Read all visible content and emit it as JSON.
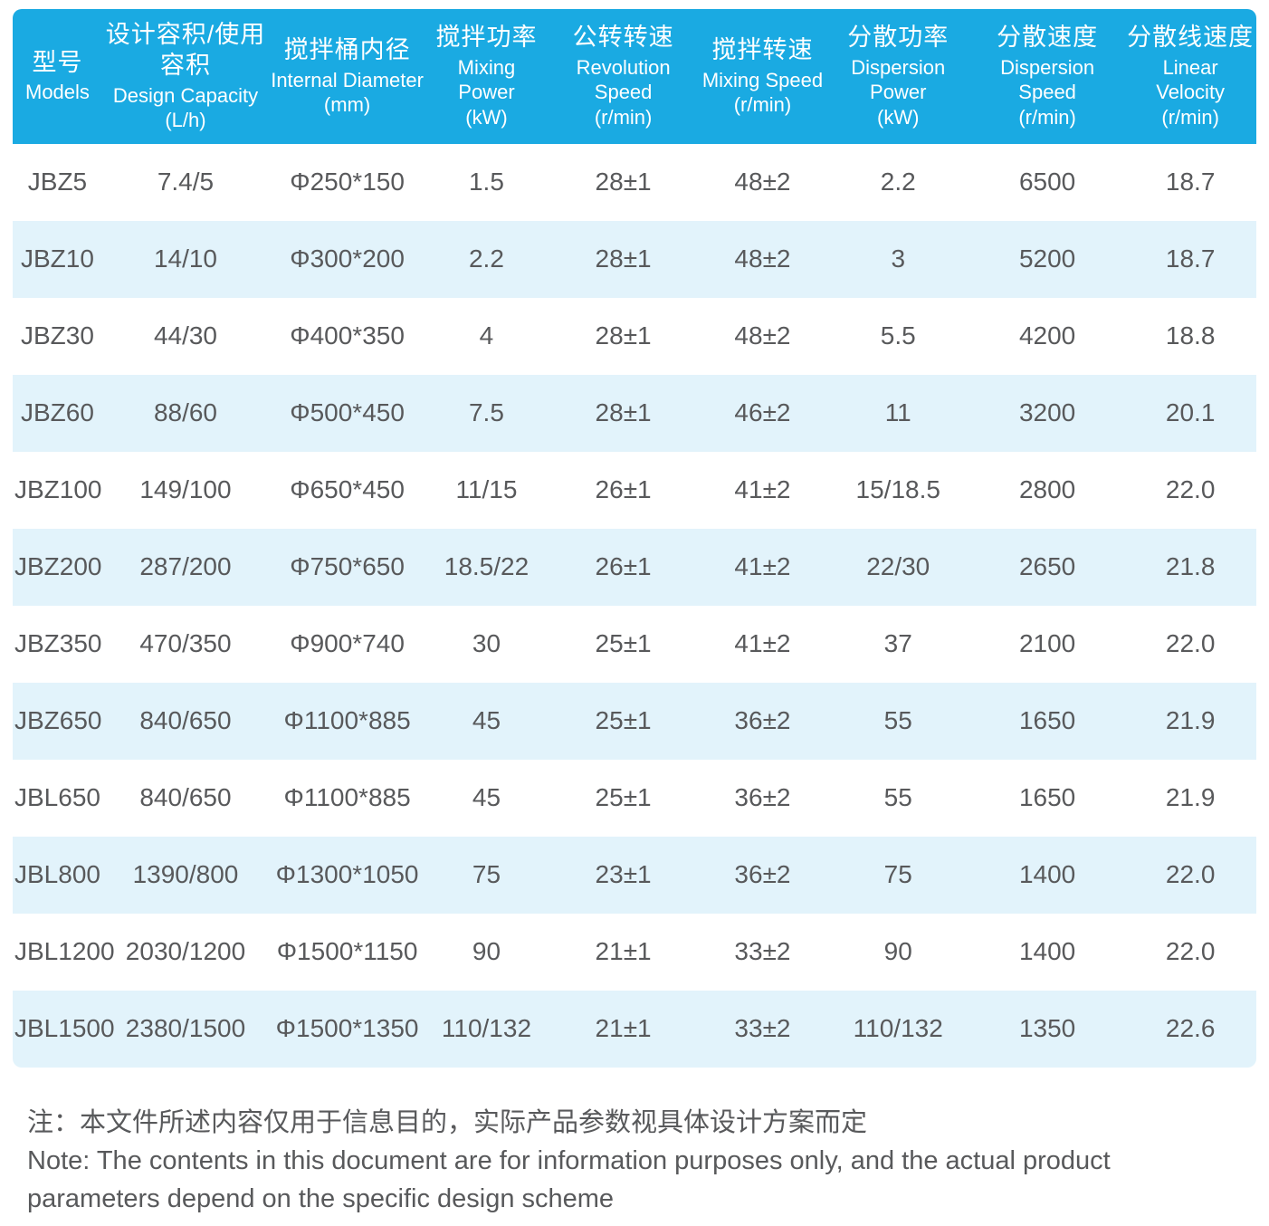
{
  "colors": {
    "header_bg": "#1aaae2",
    "header_text": "#ffffff",
    "alt_row_bg": "#e2f3fb",
    "body_text": "#58595b"
  },
  "table": {
    "columns": [
      {
        "zh": "型号",
        "en": "Models",
        "unit": ""
      },
      {
        "zh": "设计容积/使用容积",
        "en": "Design Capacity",
        "unit": "(L/h)"
      },
      {
        "zh": "搅拌桶内径",
        "en": "Internal Diameter",
        "unit": "(mm)"
      },
      {
        "zh": "搅拌功率",
        "en": "Mixing Power",
        "unit": "(kW)"
      },
      {
        "zh": "公转转速",
        "en": "Revolution Speed",
        "unit": "(r/min)"
      },
      {
        "zh": "搅拌转速",
        "en": "Mixing Speed",
        "unit": "(r/min)"
      },
      {
        "zh": "分散功率",
        "en": "Dispersion Power",
        "unit": "(kW)"
      },
      {
        "zh": "分散速度",
        "en": "Dispersion Speed",
        "unit": "(r/min)"
      },
      {
        "zh": "分散线速度",
        "en": "Linear Velocity",
        "unit": "(r/min)"
      }
    ],
    "rows": [
      [
        "JBZ5",
        "7.4/5",
        "Φ250*150",
        "1.5",
        "28±1",
        "48±2",
        "2.2",
        "6500",
        "18.7"
      ],
      [
        "JBZ10",
        "14/10",
        "Φ300*200",
        "2.2",
        "28±1",
        "48±2",
        "3",
        "5200",
        "18.7"
      ],
      [
        "JBZ30",
        "44/30",
        "Φ400*350",
        "4",
        "28±1",
        "48±2",
        "5.5",
        "4200",
        "18.8"
      ],
      [
        "JBZ60",
        "88/60",
        "Φ500*450",
        "7.5",
        "28±1",
        "46±2",
        "11",
        "3200",
        "20.1"
      ],
      [
        "JBZ100",
        "149/100",
        "Φ650*450",
        "11/15",
        "26±1",
        "41±2",
        "15/18.5",
        "2800",
        "22.0"
      ],
      [
        "JBZ200",
        "287/200",
        "Φ750*650",
        "18.5/22",
        "26±1",
        "41±2",
        "22/30",
        "2650",
        "21.8"
      ],
      [
        "JBZ350",
        "470/350",
        "Φ900*740",
        "30",
        "25±1",
        "41±2",
        "37",
        "2100",
        "22.0"
      ],
      [
        "JBZ650",
        "840/650",
        "Φ1100*885",
        "45",
        "25±1",
        "36±2",
        "55",
        "1650",
        "21.9"
      ],
      [
        "JBL650",
        "840/650",
        "Φ1100*885",
        "45",
        "25±1",
        "36±2",
        "55",
        "1650",
        "21.9"
      ],
      [
        "JBL800",
        "1390/800",
        "Φ1300*1050",
        "75",
        "23±1",
        "36±2",
        "75",
        "1400",
        "22.0"
      ],
      [
        "JBL1200",
        "2030/1200",
        "Φ1500*1150",
        "90",
        "21±1",
        "33±2",
        "90",
        "1400",
        "22.0"
      ],
      [
        "JBL1500",
        "2380/1500",
        "Φ1500*1350",
        "110/132",
        "21±1",
        "33±2",
        "110/132",
        "1350",
        "22.6"
      ]
    ]
  },
  "note": {
    "zh": "注：本文件所述内容仅用于信息目的，实际产品参数视具体设计方案而定",
    "en": "Note: The contents in this document are for information purposes only, and the actual product parameters depend on the specific design scheme"
  }
}
